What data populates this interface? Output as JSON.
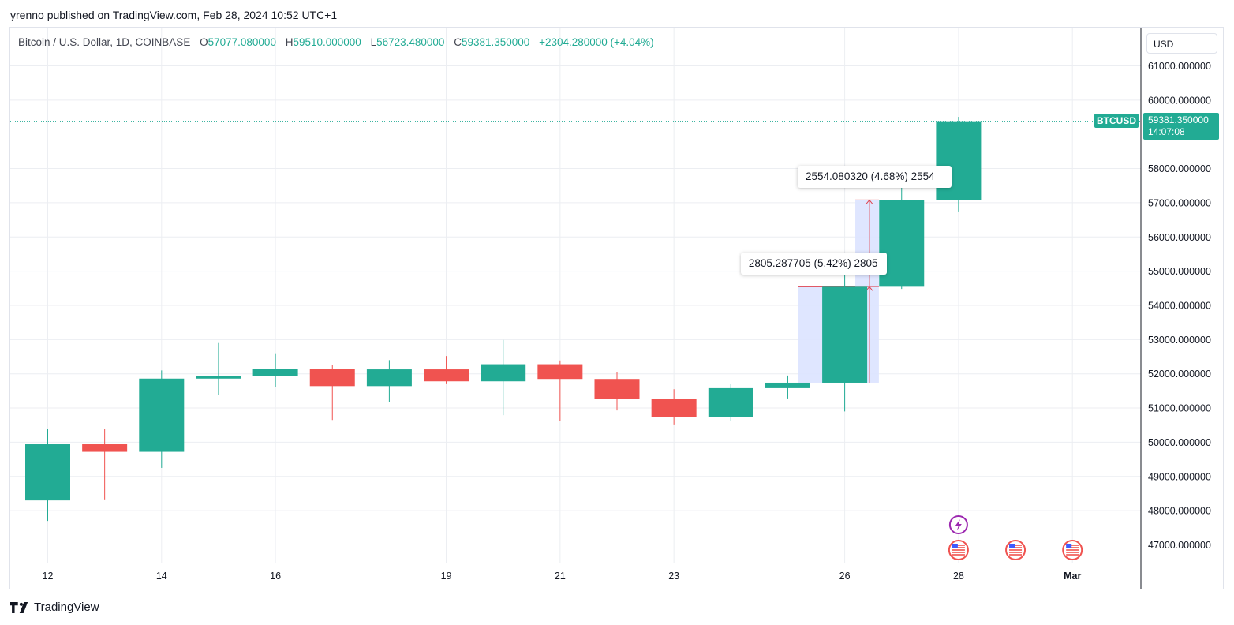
{
  "header": {
    "published": "yrenno published on TradingView.com, Feb 28, 2024 10:52 UTC+1"
  },
  "legend": {
    "symbol": "Bitcoin / U.S. Dollar, 1D, COINBASE",
    "open_label": "O",
    "open": "57077.080000",
    "high_label": "H",
    "high": "59510.000000",
    "low_label": "L",
    "low": "56723.480000",
    "close_label": "C",
    "close": "59381.350000",
    "change": "+2304.280000 (+4.04%)"
  },
  "price_scale": {
    "currency": "USD"
  },
  "last_price": {
    "symbol": "BTCUSD",
    "price": "59381.350000",
    "countdown": "14:07:08"
  },
  "measures": [
    {
      "label": "2805.287705 (5.42%) 2805",
      "from": 51740,
      "to": 54545,
      "x_from": 25.2,
      "x_to": 26.6
    },
    {
      "label": "2554.080320 (4.68%) 2554",
      "from": 54545,
      "to": 57080,
      "x_from": 26.2,
      "x_to": 26.6
    }
  ],
  "brand": {
    "name": "TradingView"
  },
  "colors": {
    "up": "#22ab94",
    "down": "#f05350",
    "measure_fill": "#dbe3ff",
    "measure_line": "#e0434f",
    "grid": "#eceef2"
  },
  "events": [
    {
      "day": 28,
      "row": 0,
      "icon": "lightning-icon",
      "color": "#9c27b0"
    },
    {
      "day": 28,
      "row": 1,
      "icon": "us-flag-icon"
    },
    {
      "day": 29,
      "row": 1,
      "icon": "us-flag-icon"
    },
    {
      "day": 30,
      "row": 1,
      "icon": "us-flag-icon"
    }
  ],
  "chart_data": {
    "type": "candlestick",
    "x_unit": "day of Feb 2024",
    "ylim": [
      46500,
      61500
    ],
    "y_ticks": [
      "47000.000000",
      "48000.000000",
      "49000.000000",
      "50000.000000",
      "51000.000000",
      "52000.000000",
      "53000.000000",
      "54000.000000",
      "55000.000000",
      "56000.000000",
      "57000.000000",
      "58000.000000",
      "60000.000000",
      "61000.000000"
    ],
    "x_ticks": [
      {
        "day": 12,
        "label": "12"
      },
      {
        "day": 14,
        "label": "14"
      },
      {
        "day": 16,
        "label": "16"
      },
      {
        "day": 19,
        "label": "19"
      },
      {
        "day": 21,
        "label": "21"
      },
      {
        "day": 23,
        "label": "23"
      },
      {
        "day": 26,
        "label": "26"
      },
      {
        "day": 28,
        "label": "28"
      },
      {
        "day": 30,
        "label": "Mar"
      }
    ],
    "candles": [
      {
        "day": 12,
        "o": 48300,
        "h": 50380,
        "l": 47700,
        "c": 49940
      },
      {
        "day": 13,
        "o": 49940,
        "h": 50380,
        "l": 48330,
        "c": 49720
      },
      {
        "day": 14,
        "o": 49720,
        "h": 52100,
        "l": 49250,
        "c": 51860
      },
      {
        "day": 15,
        "o": 51860,
        "h": 52900,
        "l": 51380,
        "c": 51940
      },
      {
        "day": 16,
        "o": 51940,
        "h": 52600,
        "l": 51610,
        "c": 52150
      },
      {
        "day": 17,
        "o": 52150,
        "h": 52250,
        "l": 50650,
        "c": 51640
      },
      {
        "day": 18,
        "o": 51640,
        "h": 52400,
        "l": 51180,
        "c": 52130
      },
      {
        "day": 19,
        "o": 52130,
        "h": 52520,
        "l": 51720,
        "c": 51780
      },
      {
        "day": 20,
        "o": 51780,
        "h": 52990,
        "l": 50790,
        "c": 52280
      },
      {
        "day": 21,
        "o": 52280,
        "h": 52390,
        "l": 50630,
        "c": 51850
      },
      {
        "day": 22,
        "o": 51850,
        "h": 52060,
        "l": 50930,
        "c": 51270
      },
      {
        "day": 23,
        "o": 51270,
        "h": 51550,
        "l": 50520,
        "c": 50730
      },
      {
        "day": 24,
        "o": 50730,
        "h": 51700,
        "l": 50620,
        "c": 51580
      },
      {
        "day": 25,
        "o": 51580,
        "h": 51950,
        "l": 51280,
        "c": 51740
      },
      {
        "day": 26,
        "o": 51740,
        "h": 54900,
        "l": 50900,
        "c": 54545
      },
      {
        "day": 27,
        "o": 54545,
        "h": 57580,
        "l": 54480,
        "c": 57080
      },
      {
        "day": 28,
        "o": 57077,
        "h": 59510,
        "l": 56723,
        "c": 59381
      }
    ]
  }
}
